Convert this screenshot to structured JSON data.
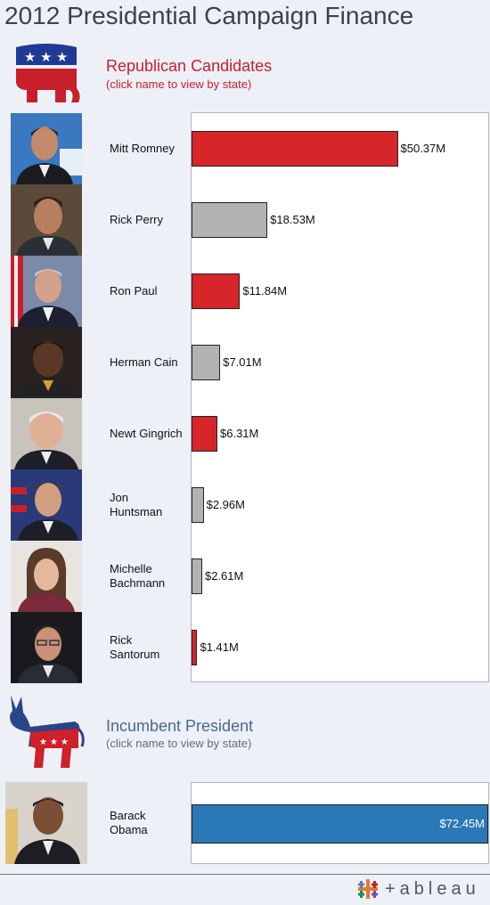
{
  "title": "2012 Presidential Campaign Finance",
  "republican": {
    "heading": "Republican Candidates",
    "subheading": "(click name to view by state)"
  },
  "incumbent": {
    "heading": "Incumbent President",
    "subheading": "(click name to view by state)"
  },
  "colors": {
    "red": "#d6262a",
    "gray": "#b2b2b2",
    "blue": "#2a78b8"
  },
  "brand": "+ableau",
  "chart_data": [
    {
      "type": "bar",
      "orientation": "horizontal",
      "categories": [
        "Mitt Romney",
        "Rick Perry",
        "Ron Paul",
        "Herman Cain",
        "Newt Gingrich",
        "Jon Huntsman",
        "Michelle Bachmann",
        "Rick Santorum"
      ],
      "values": [
        50.37,
        18.53,
        11.84,
        7.01,
        6.31,
        2.96,
        2.61,
        1.41
      ],
      "labels": [
        "$50.37M",
        "$18.53M",
        "$11.84M",
        "$7.01M",
        "$6.31M",
        "$2.96M",
        "$2.61M",
        "$1.41M"
      ],
      "bar_colors": [
        "red",
        "gray",
        "red",
        "gray",
        "red",
        "gray",
        "gray",
        "red"
      ],
      "xlim": [
        0,
        72.45
      ],
      "unit": "$M"
    },
    {
      "type": "bar",
      "orientation": "horizontal",
      "categories": [
        "Barack Obama"
      ],
      "values": [
        72.45
      ],
      "labels": [
        "$72.45M"
      ],
      "bar_colors": [
        "blue"
      ],
      "xlim": [
        0,
        72.45
      ],
      "unit": "$M"
    }
  ]
}
